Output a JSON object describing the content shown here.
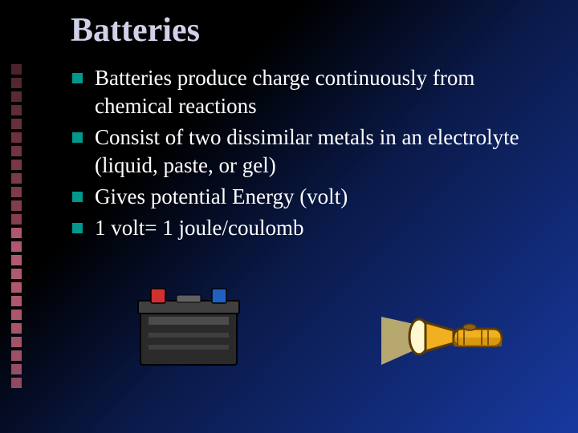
{
  "title": "Batteries",
  "bullets": [
    "Batteries produce charge continuously from chemical reactions",
    "Consist of two dissimilar metals in an electrolyte (liquid, paste, or gel)",
    "Gives potential Energy (volt)",
    "1 volt= 1 joule/coulomb"
  ],
  "decor": {
    "count": 24,
    "color_top": "#8a4050",
    "color_bottom": "#b05a70",
    "square_size": 13
  },
  "bullet_color": "#00988c",
  "text_color": "#ffffff",
  "title_color": "#d0d0e8",
  "background": {
    "stops": [
      "#000000",
      "#000000",
      "#0a1a4a",
      "#1839a0"
    ]
  },
  "images": {
    "car_battery": {
      "body_color": "#2a2a2a",
      "lid_color": "#404040",
      "terminal_pos_color": "#d03030",
      "terminal_neg_color": "#2060c0",
      "highlight_color": "#808080",
      "outline_color": "#000000"
    },
    "flashlight": {
      "body_color": "#f0b020",
      "body_dark": "#c08000",
      "lens_color": "#fff8d0",
      "beam_color": "#ffe070",
      "outline_color": "#5a3a00"
    }
  }
}
